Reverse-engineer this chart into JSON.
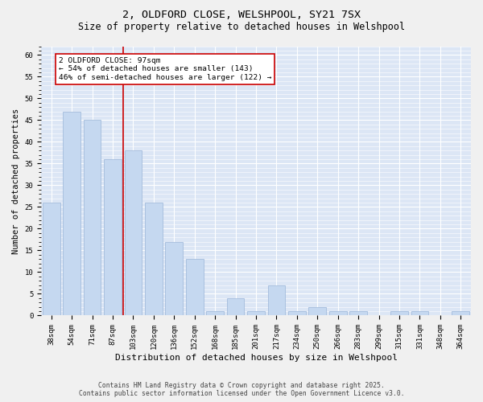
{
  "title_line1": "2, OLDFORD CLOSE, WELSHPOOL, SY21 7SX",
  "title_line2": "Size of property relative to detached houses in Welshpool",
  "xlabel": "Distribution of detached houses by size in Welshpool",
  "ylabel": "Number of detached properties",
  "bar_color": "#c5d8f0",
  "bar_edge_color": "#9ab5d8",
  "vline_color": "#cc0000",
  "vline_x": 3.5,
  "categories": [
    "38sqm",
    "54sqm",
    "71sqm",
    "87sqm",
    "103sqm",
    "120sqm",
    "136sqm",
    "152sqm",
    "168sqm",
    "185sqm",
    "201sqm",
    "217sqm",
    "234sqm",
    "250sqm",
    "266sqm",
    "283sqm",
    "299sqm",
    "315sqm",
    "331sqm",
    "348sqm",
    "364sqm"
  ],
  "values": [
    26,
    47,
    45,
    36,
    38,
    26,
    17,
    13,
    1,
    4,
    1,
    7,
    1,
    2,
    1,
    1,
    0,
    1,
    1,
    0,
    1
  ],
  "ylim": [
    0,
    62
  ],
  "yticks": [
    0,
    5,
    10,
    15,
    20,
    25,
    30,
    35,
    40,
    45,
    50,
    55,
    60
  ],
  "annotation_text": "2 OLDFORD CLOSE: 97sqm\n← 54% of detached houses are smaller (143)\n46% of semi-detached houses are larger (122) →",
  "annotation_box_facecolor": "#ffffff",
  "annotation_box_edgecolor": "#cc0000",
  "plot_facecolor": "#dce6f5",
  "figure_facecolor": "#f0f0f0",
  "grid_color": "#ffffff",
  "title_fontsize": 9.5,
  "subtitle_fontsize": 8.5,
  "tick_fontsize": 6.5,
  "ylabel_fontsize": 7.5,
  "xlabel_fontsize": 8,
  "annotation_fontsize": 6.8,
  "footer_fontsize": 5.8,
  "footer_line1": "Contains HM Land Registry data © Crown copyright and database right 2025.",
  "footer_line2": "Contains public sector information licensed under the Open Government Licence v3.0."
}
